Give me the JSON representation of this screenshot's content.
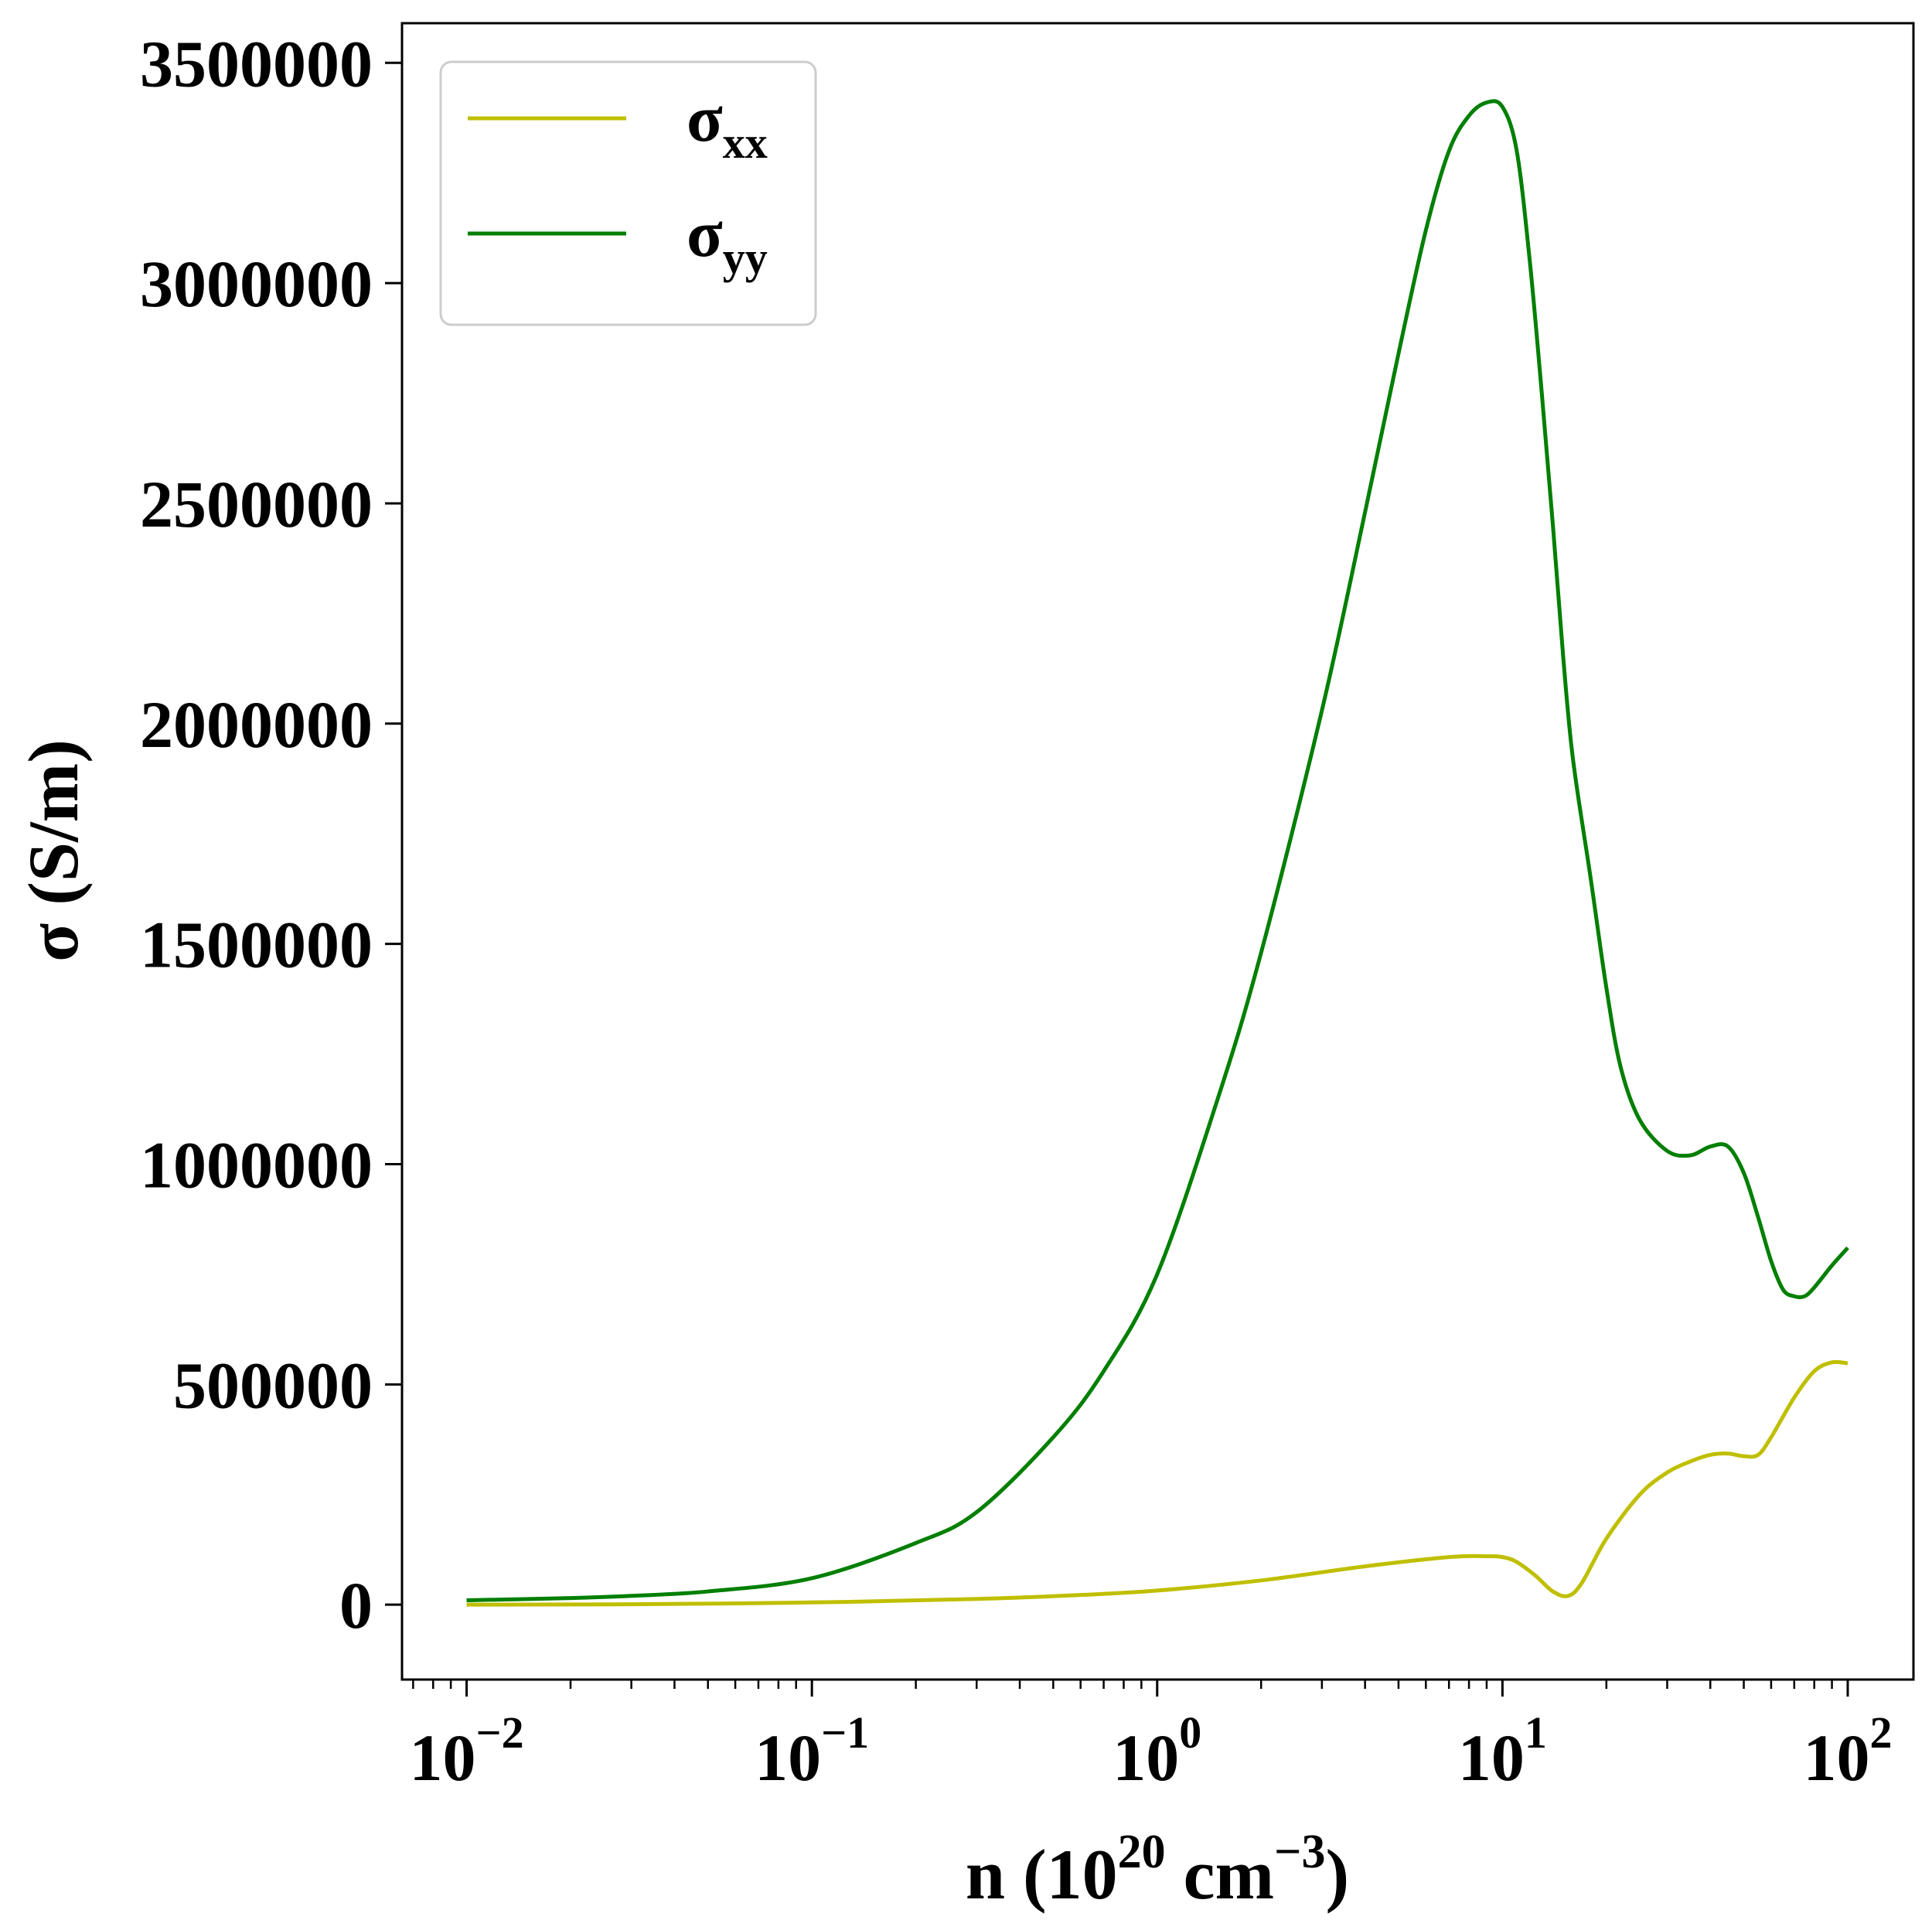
{
  "chart_data": {
    "type": "line",
    "title": "",
    "xlabel": {
      "base": "n (10",
      "sup1": "20",
      "mid": " cm",
      "sup2": "−3",
      "end": ")"
    },
    "ylabel": "σ (S/m)",
    "xscale": "log",
    "xlim": [
      0.0065,
      155
    ],
    "ylim": [
      -170000,
      3590000
    ],
    "grid": false,
    "legend_position": "top-left",
    "x_ticks": [
      {
        "base": "10",
        "exp": "−2",
        "value": 0.01
      },
      {
        "base": "10",
        "exp": "−1",
        "value": 0.1
      },
      {
        "base": "10",
        "exp": "0",
        "value": 1
      },
      {
        "base": "10",
        "exp": "1",
        "value": 10
      },
      {
        "base": "10",
        "exp": "2",
        "value": 100
      }
    ],
    "y_ticks": [
      {
        "label": "0",
        "value": 0
      },
      {
        "label": "500000",
        "value": 500000
      },
      {
        "label": "1000000",
        "value": 1000000
      },
      {
        "label": "1500000",
        "value": 1500000
      },
      {
        "label": "2000000",
        "value": 2000000
      },
      {
        "label": "2500000",
        "value": 2500000
      },
      {
        "label": "3000000",
        "value": 3000000
      },
      {
        "label": "3500000",
        "value": 3500000
      }
    ],
    "series": [
      {
        "name": {
          "base": "σ",
          "sub": "xx"
        },
        "color": "#bfbf00",
        "x": [
          0.01,
          0.03,
          0.1,
          0.3,
          0.6,
          1,
          2,
          4,
          7,
          9,
          10,
          11,
          12.5,
          14,
          15.5,
          17,
          20,
          25,
          30,
          35,
          40,
          45,
          50,
          55,
          60,
          70,
          80,
          90,
          100
        ],
        "y": [
          0,
          1000,
          5000,
          13000,
          22000,
          32000,
          55000,
          87000,
          108000,
          110000,
          108000,
          97000,
          65000,
          30000,
          20000,
          50000,
          150000,
          250000,
          300000,
          325000,
          340000,
          343000,
          337000,
          340000,
          380000,
          470000,
          530000,
          550000,
          548000
        ]
      },
      {
        "name": {
          "base": "σ",
          "sub": "yy"
        },
        "color": "#007f00",
        "x": [
          0.01,
          0.02,
          0.03,
          0.05,
          0.1,
          0.2,
          0.3,
          0.5,
          0.7,
          1,
          1.5,
          2,
          3,
          4,
          5,
          6,
          7,
          8,
          9,
          10,
          11,
          12,
          13,
          14,
          15,
          16,
          18,
          20,
          22,
          25,
          30,
          35,
          40,
          45,
          50,
          55,
          60,
          65,
          70,
          75,
          80,
          90,
          100
        ],
        "y": [
          10000,
          15000,
          20000,
          30000,
          60000,
          140000,
          210000,
          380000,
          530000,
          750000,
          1150000,
          1480000,
          2030000,
          2480000,
          2840000,
          3120000,
          3300000,
          3380000,
          3410000,
          3400000,
          3300000,
          3050000,
          2750000,
          2450000,
          2150000,
          1920000,
          1650000,
          1400000,
          1220000,
          1100000,
          1030000,
          1020000,
          1040000,
          1040000,
          980000,
          880000,
          780000,
          715000,
          700000,
          700000,
          720000,
          770000,
          810000
        ]
      }
    ]
  }
}
